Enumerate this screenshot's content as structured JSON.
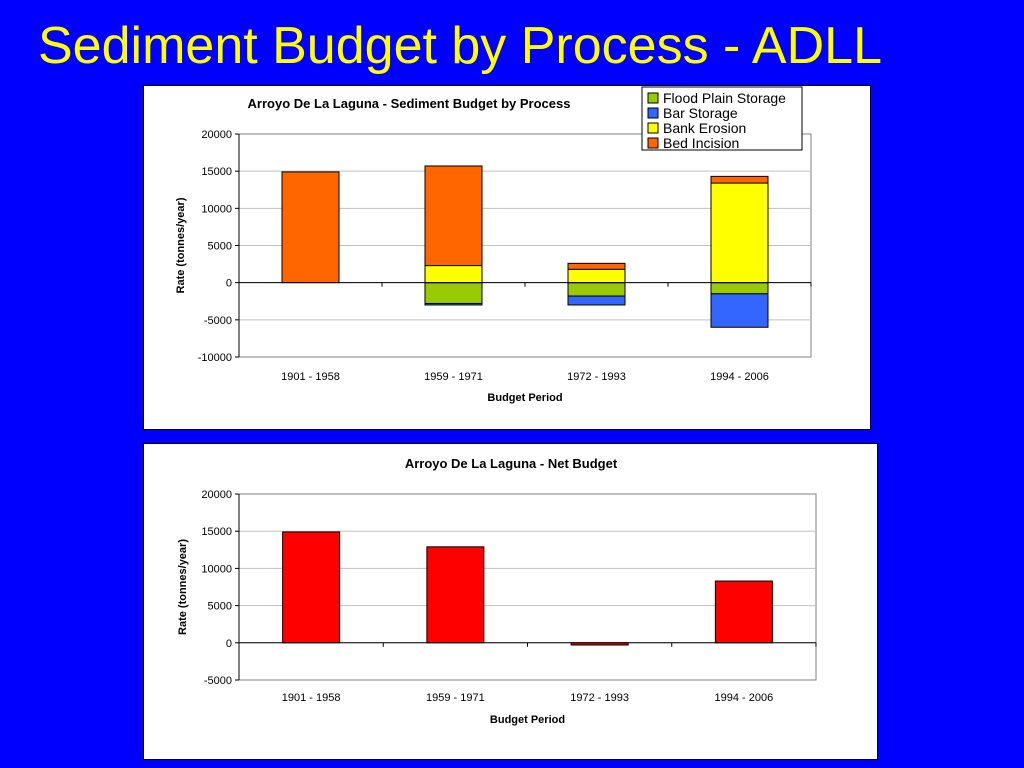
{
  "slide": {
    "title": "Sediment Budget by Process - ADLL"
  },
  "chart_data": [
    {
      "type": "bar",
      "stacked": true,
      "title": "Arroyo De La Laguna - Sediment Budget by Process",
      "xlabel": "Budget Period",
      "ylabel": "Rate (tonnes/year)",
      "ylim": [
        -10000,
        20000
      ],
      "yticks": [
        20000,
        15000,
        10000,
        5000,
        0,
        -5000,
        -10000
      ],
      "grid": true,
      "legend_position": "top-right",
      "categories": [
        "1901 - 1958",
        "1959 - 1971",
        "1972 - 1993",
        "1994 - 2006"
      ],
      "series": [
        {
          "name": "Flood Plain Storage",
          "color": "#99cc00",
          "values": [
            0,
            -2800,
            -1800,
            -1500
          ]
        },
        {
          "name": "Bar Storage",
          "color": "#3366ff",
          "values": [
            0,
            -200,
            -1200,
            -4500
          ]
        },
        {
          "name": "Bank Erosion",
          "color": "#ffff00",
          "values": [
            0,
            2300,
            1800,
            13400
          ]
        },
        {
          "name": "Bed Incision",
          "color": "#ff6600",
          "values": [
            14900,
            13400,
            800,
            900
          ]
        }
      ]
    },
    {
      "type": "bar",
      "title": "Arroyo De La Laguna - Net Budget",
      "xlabel": "Budget Period",
      "ylabel": "Rate (tonnes/year)",
      "ylim": [
        -5000,
        20000
      ],
      "yticks": [
        20000,
        15000,
        10000,
        5000,
        0,
        -5000
      ],
      "grid": true,
      "categories": [
        "1901 - 1958",
        "1959 - 1971",
        "1972 - 1993",
        "1994 - 2006"
      ],
      "series": [
        {
          "color": "#ff0000",
          "values": [
            14900,
            12900,
            -300,
            8300
          ]
        }
      ]
    }
  ]
}
